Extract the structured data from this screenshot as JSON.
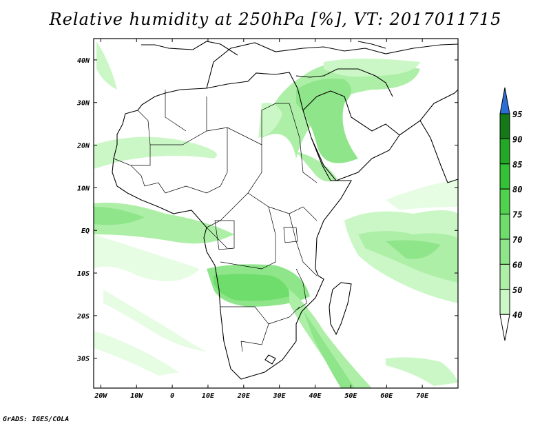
{
  "title": "Relative humidity at 250hPa [%], VT: 2017011715",
  "credit": "GrADS: IGES/COLA",
  "map": {
    "lat_ticks": [
      "40N",
      "30N",
      "20N",
      "10N",
      "EQ",
      "10S",
      "20S",
      "30S"
    ],
    "lon_ticks": [
      "20W",
      "10W",
      "0",
      "10E",
      "20E",
      "30E",
      "40E",
      "50E",
      "60E",
      "70E"
    ],
    "extent": {
      "lon": [
        -22,
        80
      ],
      "lat": [
        -37,
        45
      ]
    }
  },
  "colorbar": {
    "levels": [
      "40",
      "50",
      "60",
      "70",
      "75",
      "80",
      "85",
      "90",
      "95"
    ],
    "colors": [
      "#e6fde4",
      "#cbf7c6",
      "#aeefa8",
      "#8fe58a",
      "#6edd6b",
      "#4fd24e",
      "#33c135",
      "#22a825",
      "#147a17"
    ],
    "over_color": "#2b6fd6",
    "under_color": "#ffffff"
  }
}
